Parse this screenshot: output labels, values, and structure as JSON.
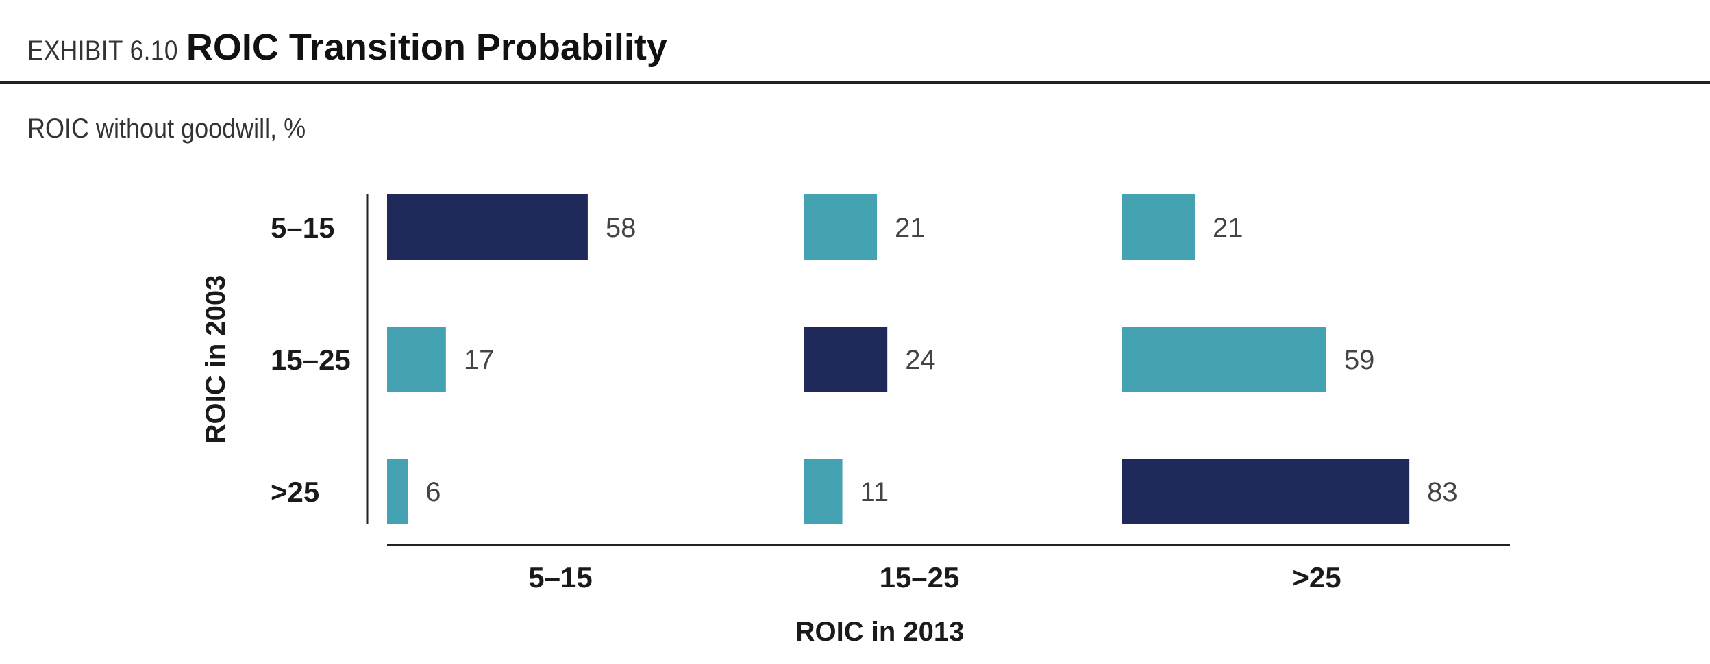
{
  "header": {
    "exhibit": "EXHIBIT 6.10",
    "title": "ROIC Transition Probability",
    "subtitle": "ROIC without goodwill, %"
  },
  "colors": {
    "diagonal": "#1f2a5a",
    "off_diagonal": "#45a2b2",
    "axis": "#222222"
  },
  "chart_data": {
    "type": "bar",
    "orientation": "horizontal",
    "layout": "transition-matrix",
    "row_axis_label": "ROIC in 2003",
    "col_axis_label": "ROIC in 2013",
    "rows": [
      "5–15",
      "15–25",
      ">25"
    ],
    "columns": [
      "5–15",
      "15–25",
      ">25"
    ],
    "values": [
      [
        58,
        21,
        21
      ],
      [
        17,
        24,
        59
      ],
      [
        6,
        11,
        83
      ]
    ],
    "value_unit": "%",
    "diagonal_highlight": true
  }
}
